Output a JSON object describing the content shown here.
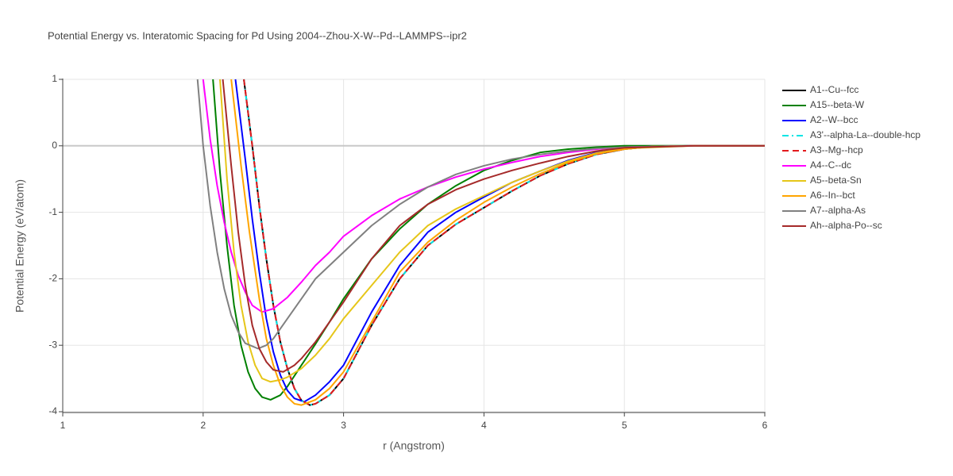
{
  "chart_data": {
    "type": "line",
    "title": "Potential Energy vs. Interatomic Spacing for Pd Using 2004--Zhou-X-W--Pd--LAMMPS--ipr2",
    "x_label": "r (Angstrom)",
    "y_label": "Potential Energy (eV/atom)",
    "xlim": [
      1,
      6
    ],
    "xticks": [
      1,
      2,
      3,
      4,
      5,
      6
    ],
    "ylim": [
      -4,
      1
    ],
    "yticks": [
      -4,
      -3,
      -2,
      -1,
      0,
      1
    ],
    "grid": true,
    "series": [
      {
        "name": "A1--Cu--fcc",
        "color": "#000000",
        "dash": "solid",
        "x": [
          2.29,
          2.35,
          2.4,
          2.45,
          2.5,
          2.55,
          2.6,
          2.65,
          2.7,
          2.76,
          2.8,
          2.9,
          3.0,
          3.2,
          3.4,
          3.6,
          3.8,
          4.0,
          4.2,
          4.4,
          4.6,
          4.8,
          5.0,
          5.2,
          5.5,
          6.0
        ],
        "values": [
          1,
          0,
          -0.9,
          -1.7,
          -2.4,
          -2.95,
          -3.35,
          -3.65,
          -3.83,
          -3.9,
          -3.88,
          -3.75,
          -3.5,
          -2.7,
          -2.0,
          -1.5,
          -1.18,
          -0.93,
          -0.68,
          -0.45,
          -0.27,
          -0.13,
          -0.05,
          -0.01,
          0,
          0
        ]
      },
      {
        "name": "A15--beta-W",
        "color": "#008000",
        "dash": "solid",
        "x": [
          2.07,
          2.12,
          2.17,
          2.22,
          2.27,
          2.32,
          2.37,
          2.42,
          2.48,
          2.55,
          2.6,
          2.7,
          2.8,
          2.9,
          3.0,
          3.2,
          3.4,
          3.6,
          3.8,
          4.0,
          4.2,
          4.4,
          4.6,
          4.8,
          5.0,
          5.5,
          6.0
        ],
        "values": [
          1,
          -0.4,
          -1.5,
          -2.4,
          -3.0,
          -3.4,
          -3.65,
          -3.78,
          -3.82,
          -3.75,
          -3.62,
          -3.3,
          -2.98,
          -2.65,
          -2.3,
          -1.7,
          -1.25,
          -0.88,
          -0.6,
          -0.37,
          -0.22,
          -0.1,
          -0.05,
          -0.02,
          0,
          0,
          0
        ]
      },
      {
        "name": "A2--W--bcc",
        "color": "#0000ff",
        "dash": "solid",
        "x": [
          2.23,
          2.3,
          2.35,
          2.4,
          2.45,
          2.5,
          2.55,
          2.6,
          2.65,
          2.72,
          2.8,
          2.9,
          3.0,
          3.2,
          3.4,
          3.6,
          3.8,
          4.0,
          4.2,
          4.4,
          4.6,
          4.8,
          5.0,
          5.2,
          5.5,
          6.0
        ],
        "values": [
          1,
          -0.2,
          -1.1,
          -1.9,
          -2.6,
          -3.1,
          -3.45,
          -3.68,
          -3.8,
          -3.85,
          -3.75,
          -3.55,
          -3.3,
          -2.5,
          -1.8,
          -1.3,
          -1.0,
          -0.77,
          -0.55,
          -0.38,
          -0.22,
          -0.1,
          -0.04,
          -0.01,
          0,
          0
        ]
      },
      {
        "name": "A3'--alpha-La--double-hcp",
        "color": "#00e5e5",
        "dash": "dashdot",
        "x": [
          2.29,
          2.35,
          2.4,
          2.45,
          2.5,
          2.55,
          2.6,
          2.65,
          2.7,
          2.76,
          2.8,
          2.9,
          3.0,
          3.2,
          3.4,
          3.6,
          3.8,
          4.0,
          4.2,
          4.4,
          4.6,
          4.8,
          5.0,
          5.2,
          5.5,
          6.0
        ],
        "values": [
          1,
          0,
          -0.9,
          -1.7,
          -2.4,
          -2.95,
          -3.35,
          -3.65,
          -3.83,
          -3.9,
          -3.88,
          -3.75,
          -3.5,
          -2.7,
          -2.0,
          -1.5,
          -1.18,
          -0.93,
          -0.68,
          -0.45,
          -0.27,
          -0.13,
          -0.05,
          -0.01,
          0,
          0
        ]
      },
      {
        "name": "A3--Mg--hcp",
        "color": "#e31a1c",
        "dash": "dash",
        "x": [
          2.29,
          2.35,
          2.4,
          2.45,
          2.5,
          2.55,
          2.6,
          2.65,
          2.7,
          2.76,
          2.8,
          2.9,
          3.0,
          3.2,
          3.4,
          3.6,
          3.8,
          4.0,
          4.2,
          4.4,
          4.6,
          4.8,
          5.0,
          5.2,
          5.5,
          6.0
        ],
        "values": [
          1,
          0,
          -0.9,
          -1.7,
          -2.4,
          -2.95,
          -3.35,
          -3.65,
          -3.83,
          -3.9,
          -3.88,
          -3.75,
          -3.5,
          -2.7,
          -2.0,
          -1.5,
          -1.18,
          -0.93,
          -0.68,
          -0.45,
          -0.27,
          -0.13,
          -0.05,
          -0.01,
          0,
          0
        ]
      },
      {
        "name": "A4--C--dc",
        "color": "#ff00ff",
        "dash": "solid",
        "x": [
          2.0,
          2.05,
          2.1,
          2.15,
          2.2,
          2.25,
          2.3,
          2.35,
          2.42,
          2.5,
          2.6,
          2.7,
          2.8,
          2.9,
          3.0,
          3.2,
          3.4,
          3.6,
          3.8,
          4.0,
          4.2,
          4.4,
          4.6,
          4.8,
          5.0,
          5.5,
          6.0
        ],
        "values": [
          1,
          0.1,
          -0.6,
          -1.15,
          -1.6,
          -1.95,
          -2.2,
          -2.4,
          -2.5,
          -2.45,
          -2.28,
          -2.05,
          -1.8,
          -1.6,
          -1.36,
          -1.05,
          -0.8,
          -0.62,
          -0.47,
          -0.35,
          -0.25,
          -0.16,
          -0.1,
          -0.05,
          -0.02,
          0,
          0
        ]
      },
      {
        "name": "A5--beta-Sn",
        "color": "#e6c619",
        "dash": "solid",
        "x": [
          2.12,
          2.17,
          2.22,
          2.27,
          2.32,
          2.37,
          2.42,
          2.48,
          2.55,
          2.6,
          2.7,
          2.8,
          2.9,
          3.0,
          3.2,
          3.4,
          3.6,
          3.8,
          4.0,
          4.2,
          4.4,
          4.6,
          4.8,
          5.0,
          5.5,
          6.0
        ],
        "values": [
          1,
          -0.5,
          -1.6,
          -2.4,
          -2.95,
          -3.3,
          -3.5,
          -3.55,
          -3.52,
          -3.48,
          -3.35,
          -3.15,
          -2.9,
          -2.6,
          -2.1,
          -1.6,
          -1.2,
          -0.95,
          -0.75,
          -0.55,
          -0.38,
          -0.23,
          -0.11,
          -0.04,
          0,
          0
        ]
      },
      {
        "name": "A6--In--bct",
        "color": "#ffa500",
        "dash": "solid",
        "x": [
          2.2,
          2.27,
          2.33,
          2.4,
          2.45,
          2.5,
          2.55,
          2.6,
          2.65,
          2.7,
          2.8,
          2.9,
          3.0,
          3.2,
          3.4,
          3.6,
          3.8,
          4.0,
          4.2,
          4.4,
          4.6,
          4.8,
          5.0,
          5.2,
          5.5,
          6.0
        ],
        "values": [
          1,
          -0.3,
          -1.3,
          -2.3,
          -2.9,
          -3.3,
          -3.6,
          -3.78,
          -3.88,
          -3.9,
          -3.82,
          -3.65,
          -3.4,
          -2.65,
          -1.9,
          -1.45,
          -1.12,
          -0.85,
          -0.62,
          -0.42,
          -0.25,
          -0.12,
          -0.05,
          -0.01,
          0,
          0
        ]
      },
      {
        "name": "A7--alpha-As",
        "color": "#808080",
        "dash": "solid",
        "x": [
          1.96,
          2.0,
          2.05,
          2.1,
          2.15,
          2.2,
          2.25,
          2.3,
          2.39,
          2.45,
          2.5,
          2.6,
          2.7,
          2.8,
          2.9,
          3.0,
          3.2,
          3.4,
          3.6,
          3.8,
          4.0,
          4.2,
          4.4,
          4.6,
          4.8,
          5.0,
          5.5,
          6.0
        ],
        "values": [
          1,
          0,
          -0.9,
          -1.6,
          -2.15,
          -2.55,
          -2.8,
          -2.97,
          -3.05,
          -3.0,
          -2.9,
          -2.6,
          -2.3,
          -2.0,
          -1.8,
          -1.6,
          -1.2,
          -0.88,
          -0.62,
          -0.43,
          -0.3,
          -0.2,
          -0.13,
          -0.08,
          -0.04,
          -0.02,
          0,
          0
        ]
      },
      {
        "name": "Ah--alpha-Po--sc",
        "color": "#a52a2a",
        "dash": "solid",
        "x": [
          2.14,
          2.2,
          2.25,
          2.3,
          2.35,
          2.4,
          2.45,
          2.5,
          2.57,
          2.65,
          2.7,
          2.8,
          2.9,
          3.0,
          3.2,
          3.4,
          3.6,
          3.8,
          4.0,
          4.2,
          4.4,
          4.6,
          4.8,
          5.0,
          5.5,
          6.0
        ],
        "values": [
          1,
          -0.3,
          -1.3,
          -2.1,
          -2.7,
          -3.05,
          -3.25,
          -3.37,
          -3.4,
          -3.3,
          -3.2,
          -2.95,
          -2.65,
          -2.35,
          -1.7,
          -1.2,
          -0.88,
          -0.66,
          -0.5,
          -0.37,
          -0.26,
          -0.16,
          -0.08,
          -0.03,
          0,
          0
        ]
      }
    ]
  }
}
